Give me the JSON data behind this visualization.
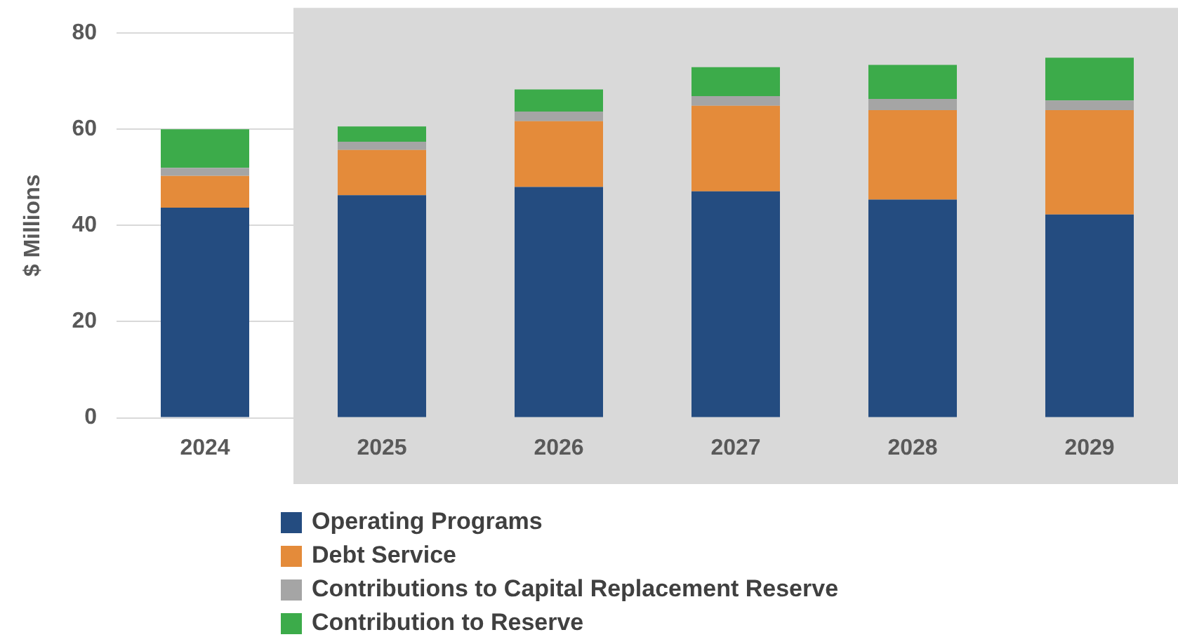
{
  "chart_data": {
    "type": "bar",
    "stacked": true,
    "ylabel": "$ Millions",
    "categories": [
      "2024",
      "2025",
      "2026",
      "2027",
      "2028",
      "2029"
    ],
    "series": [
      {
        "name": "Operating Programs",
        "color": "#244c80",
        "values": [
          43.7,
          46.3,
          48,
          47.1,
          45.4,
          42.3
        ]
      },
      {
        "name": "Debt Service",
        "color": "#e48b3a",
        "values": [
          6.6,
          9.4,
          13.7,
          17.8,
          18.6,
          21.7
        ]
      },
      {
        "name": "Contributions to Capital Replacement Reserve",
        "color": "#a5a5a5",
        "values": [
          1.7,
          1.7,
          2,
          2,
          2.3,
          2
        ]
      },
      {
        "name": "Contribution to Reserve",
        "color": "#3cab4a",
        "values": [
          8,
          3.2,
          4.6,
          6,
          7.1,
          8.9
        ]
      }
    ],
    "ylim": [
      0,
      80
    ],
    "yticks": [
      0,
      20,
      40,
      60,
      80
    ],
    "grid": "y",
    "legend": "bottom",
    "bands": [
      {
        "axis": "x",
        "from": "2025",
        "to": "2029",
        "color": "#d9d9d9"
      }
    ]
  }
}
